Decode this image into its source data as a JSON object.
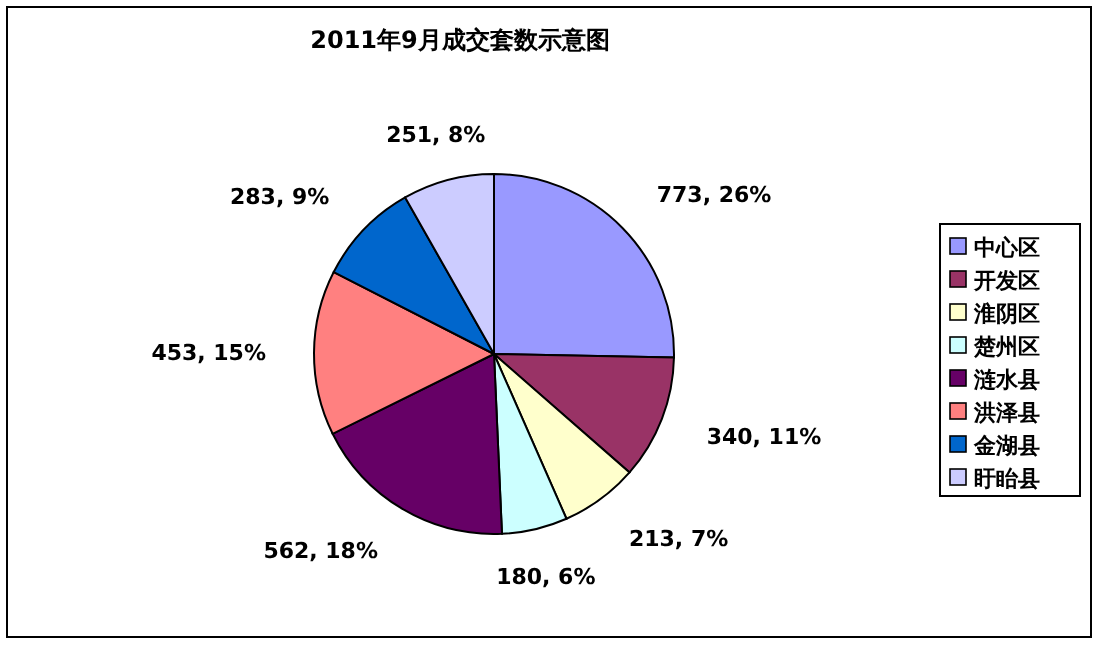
{
  "chart_data": {
    "type": "pie",
    "title": "2011年9月成交套数示意图",
    "categories": [
      "中心区",
      "开发区",
      "淮阴区",
      "楚州区",
      "涟水县",
      "洪泽县",
      "金湖县",
      "盱眙县"
    ],
    "values": [
      773,
      340,
      213,
      180,
      562,
      453,
      283,
      251
    ],
    "value_labels": [
      "773, 26%",
      "340, 11%",
      "213, 7%",
      "180, 6%",
      "562, 18%",
      "453, 15%",
      "283, 9%",
      "251, 8%"
    ],
    "colors": [
      "#9999ff",
      "#993366",
      "#ffffcc",
      "#ccffff",
      "#660066",
      "#ff8080",
      "#0066cc",
      "#ccccff"
    ],
    "legend": "right"
  }
}
